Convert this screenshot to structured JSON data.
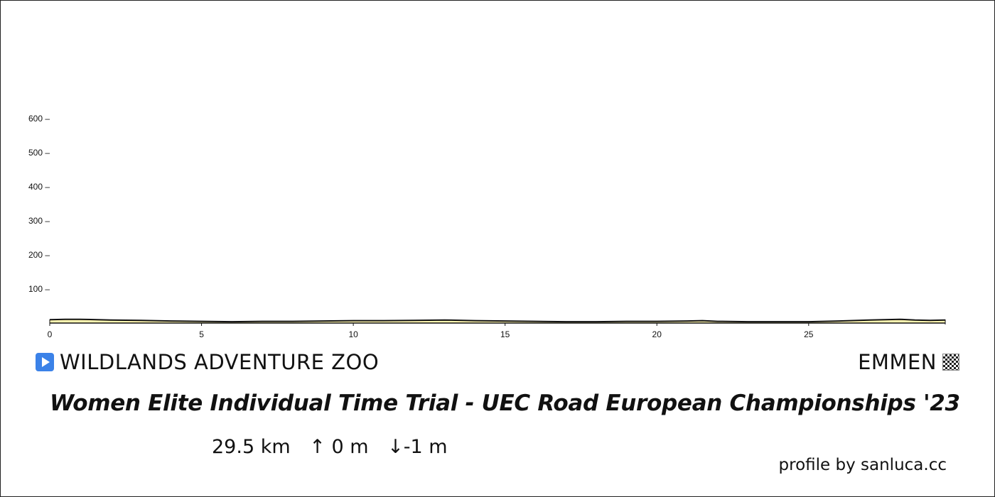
{
  "chart_data": {
    "type": "area",
    "x": [
      0,
      0.5,
      1.0,
      2.0,
      3.0,
      4.0,
      5.0,
      6.0,
      7.0,
      8.0,
      9.0,
      10.0,
      11.0,
      12.0,
      13.0,
      14.0,
      15.0,
      16.0,
      17.0,
      18.0,
      19.0,
      20.0,
      21.0,
      21.5,
      22.0,
      23.0,
      24.0,
      25.0,
      26.0,
      27.0,
      28.0,
      28.5,
      29.0,
      29.5
    ],
    "y": [
      10,
      11,
      11,
      9,
      8,
      6,
      5,
      4,
      5,
      5,
      6,
      7,
      7,
      8,
      9,
      7,
      6,
      5,
      4,
      4,
      5,
      5,
      6,
      7,
      5,
      4,
      4,
      4,
      6,
      9,
      11,
      9,
      8,
      9
    ],
    "xticks": [
      "0",
      "5",
      "10",
      "15",
      "20",
      "25"
    ],
    "yticks": [
      "100 –",
      "200 –",
      "300 –",
      "400 –",
      "500 –",
      "600 –"
    ],
    "xlim": [
      0,
      29.5
    ],
    "ylim": [
      0,
      650
    ],
    "fill_color": "#fff6b0",
    "line_color": "#111111"
  },
  "start": {
    "name": "WILDLANDS ADVENTURE ZOO",
    "icon": "play-icon",
    "icon_color": "#3b82e8"
  },
  "finish": {
    "name": "EMMEN",
    "icon": "checkered-flag-icon"
  },
  "title": "Women Elite Individual Time Trial - UEC Road European Championships '23",
  "stats": {
    "distance": "29.5 km",
    "ascent": "↑ 0 m",
    "descent": "↓-1 m"
  },
  "credit": "profile by sanluca.cc"
}
